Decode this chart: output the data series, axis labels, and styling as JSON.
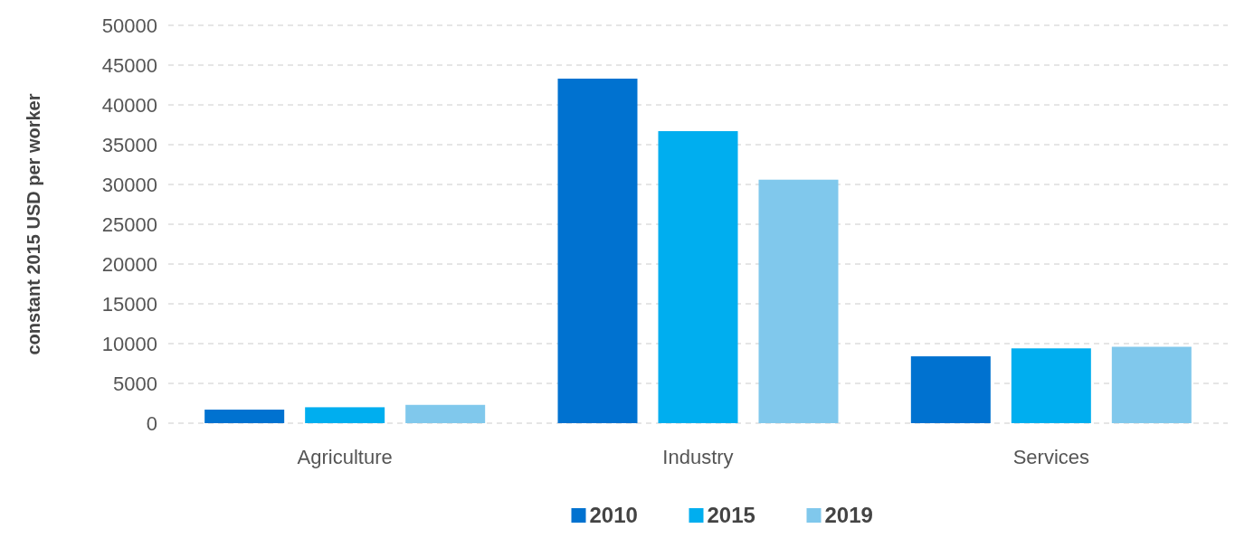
{
  "chart_data": {
    "type": "bar",
    "ylabel": "constant 2015 USD per worker",
    "categories": [
      "Agriculture",
      "Industry",
      "Services"
    ],
    "series": [
      {
        "name": "2010",
        "color": "#0072d0",
        "values": [
          1700,
          43300,
          8400
        ]
      },
      {
        "name": "2015",
        "color": "#00aeef",
        "values": [
          2000,
          36700,
          9400
        ]
      },
      {
        "name": "2019",
        "color": "#80c8ec",
        "values": [
          2300,
          30600,
          9600
        ]
      }
    ],
    "ylim": [
      0,
      50000
    ],
    "yticks": [
      0,
      5000,
      10000,
      15000,
      20000,
      25000,
      30000,
      35000,
      40000,
      45000,
      50000
    ],
    "grid": "y",
    "legend": "bottom"
  }
}
